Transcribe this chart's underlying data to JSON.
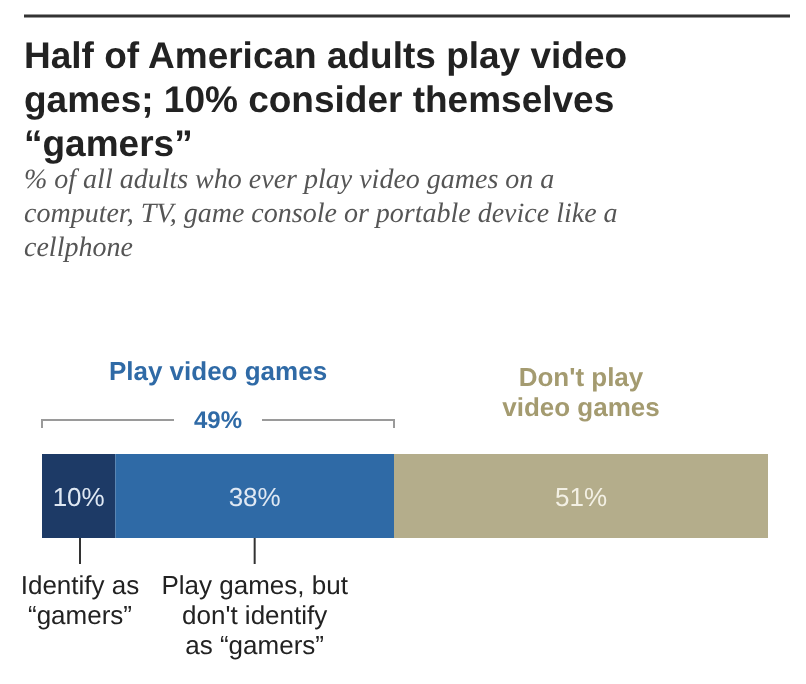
{
  "chart_data": {
    "type": "bar",
    "orientation": "horizontal",
    "stacked": true,
    "title": "Half of American adults play video games; 10% consider themselves “gamers”",
    "subtitle": "% of all adults who ever play video games on a computer, TV, game console or portable device like a cellphone",
    "categories": [
      null
    ],
    "annotations": [
      "Play video games",
      "49%"
    ],
    "series": [
      {
        "name": "Identify as “gamers”",
        "color": "#1d3a66",
        "values": [
          10
        ],
        "value_labels": [
          "10%"
        ]
      },
      {
        "name": "Play games, but don't identify as “gamers”",
        "color": "#2f6aa6",
        "values": [
          38
        ],
        "value_labels": [
          "38%"
        ]
      },
      {
        "name": "Don't play video games",
        "color": "#b4ad8b",
        "values": [
          51
        ],
        "value_labels": [
          "51%"
        ]
      }
    ]
  }
}
